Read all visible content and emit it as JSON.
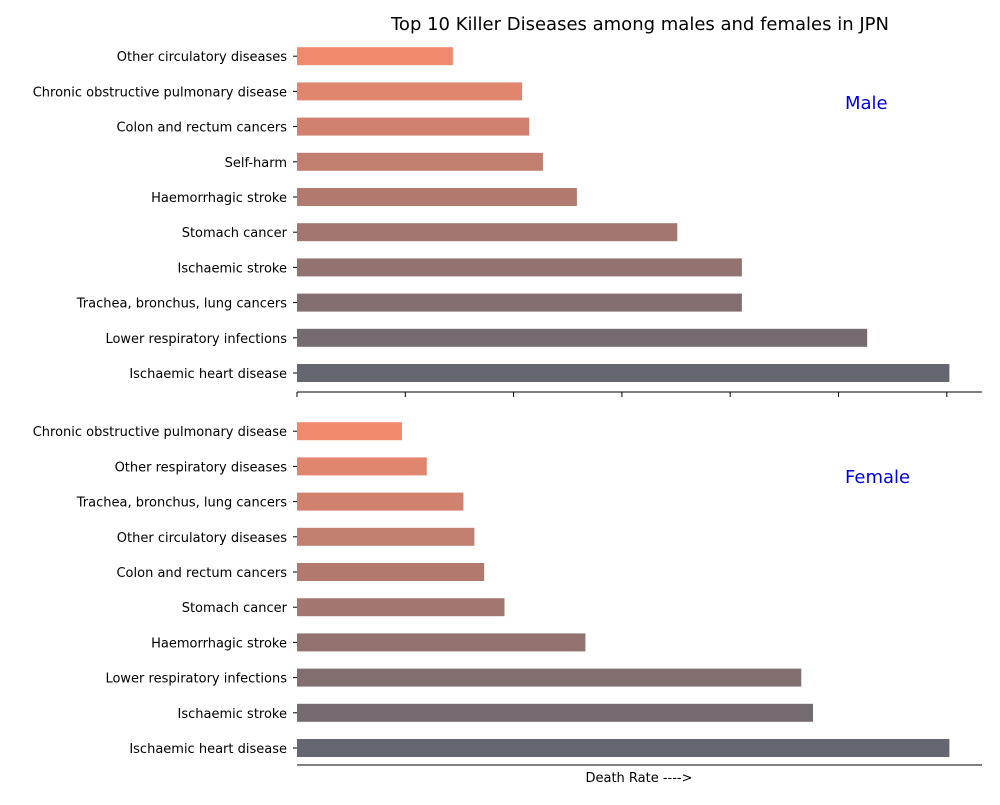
{
  "chart_data": {
    "title": "Top 10 Killer Diseases among males and females in JPN",
    "xlabel": "Death Rate ---->",
    "panels": [
      {
        "type": "bar",
        "orientation": "horizontal",
        "label": "Male",
        "categories": [
          "Ischaemic heart disease",
          "Lower respiratory infections",
          "Trachea, bronchus, lung cancers",
          "Ischaemic stroke",
          "Stomach cancer",
          "Haemorrhagic stroke",
          "Self-harm",
          "Colon and rectum cancers",
          "Chronic obstructive pulmonary disease",
          "Other circulatory diseases"
        ],
        "values": [
          100,
          87.4,
          68.2,
          68.2,
          58.3,
          42.9,
          37.7,
          35.6,
          34.5,
          23.9
        ],
        "xlim": [
          0,
          105
        ],
        "ticks_shown": true,
        "tick_labels_shown": false
      },
      {
        "type": "bar",
        "orientation": "horizontal",
        "label": "Female",
        "categories": [
          "Ischaemic heart disease",
          "Ischaemic stroke",
          "Lower respiratory infections",
          "Haemorrhagic stroke",
          "Stomach cancer",
          "Colon and rectum cancers",
          "Other circulatory diseases",
          "Trachea, bronchus, lung cancers",
          "Other respiratory diseases",
          "Chronic obstructive pulmonary disease"
        ],
        "values": [
          100,
          79.1,
          77.3,
          44.2,
          31.8,
          28.7,
          27.2,
          25.5,
          19.9,
          16.1
        ],
        "xlim": [
          0,
          105
        ],
        "ticks_shown": false,
        "tick_labels_shown": false
      }
    ],
    "colors": {
      "bar_gradient_start": "#656770",
      "bar_gradient_end": "#f08a6e",
      "panel_label": "#0000dd",
      "axis": "#000000"
    },
    "grid": false
  }
}
